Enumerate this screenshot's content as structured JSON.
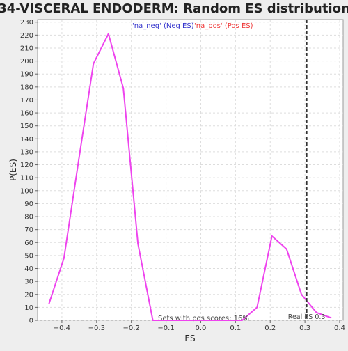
{
  "chart_data": {
    "type": "line",
    "title": "34-VISCERAL ENDODERM: Random ES distribution",
    "xlabel": "ES",
    "ylabel": "P(ES)",
    "xlim": [
      -0.47,
      0.41
    ],
    "ylim": [
      0,
      232
    ],
    "x_ticks": [
      -0.4,
      -0.3,
      -0.2,
      -0.1,
      0.0,
      0.1,
      0.2,
      0.3,
      0.4
    ],
    "x_tick_labels": [
      "−0.4",
      "−0.3",
      "−0.2",
      "−0.1",
      "0.0",
      "0.1",
      "0.2",
      "0.3",
      "0.4"
    ],
    "y_ticks": [
      0,
      10,
      20,
      30,
      40,
      50,
      60,
      70,
      80,
      90,
      100,
      110,
      120,
      130,
      140,
      150,
      160,
      170,
      180,
      190,
      200,
      210,
      220,
      230
    ],
    "grid": true,
    "legend": {
      "placement": "top-center",
      "entries": [
        {
          "label": "'na_neg' (Neg ES)",
          "color": "#3333cc"
        },
        {
          "label": "'na_pos' (Pos ES)",
          "color": "#ee3333"
        }
      ]
    },
    "series": [
      {
        "color": "#ee44ee",
        "x": [
          -0.437,
          -0.394,
          -0.352,
          -0.309,
          -0.266,
          -0.223,
          -0.181,
          -0.138,
          -0.095,
          -0.052,
          -0.009,
          0.034,
          0.076,
          0.119,
          0.162,
          0.205,
          0.247,
          0.29,
          0.333,
          0.375
        ],
        "y": [
          13,
          48,
          123,
          198,
          221,
          179,
          59,
          0,
          0,
          0,
          0,
          0,
          0,
          0,
          10,
          65,
          55,
          20,
          6,
          2
        ]
      }
    ],
    "reference_line": {
      "x": 0.305,
      "label": "Real ES 0.3",
      "style": "dashed",
      "color": "#333333"
    },
    "annotations": [
      {
        "text": "Sets with pos scores: 16%",
        "x": 0.0,
        "y": 2
      }
    ]
  }
}
